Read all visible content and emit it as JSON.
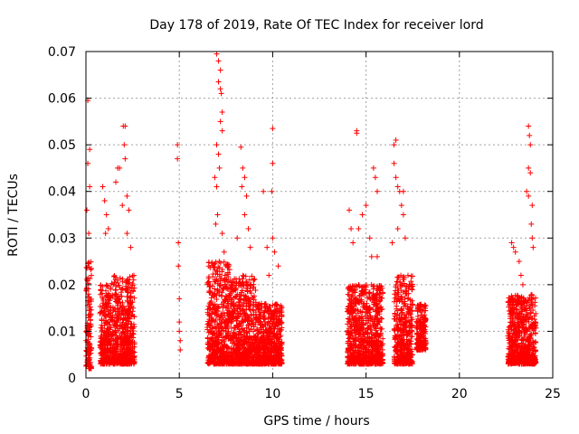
{
  "chart_data": {
    "type": "scatter",
    "title": "Day 178 of 2019, Rate Of TEC Index for receiver lord",
    "xlabel": "GPS time / hours",
    "ylabel": "ROTI / TECUs",
    "xlim": [
      0,
      25
    ],
    "ylim": [
      0,
      0.07
    ],
    "x_ticks": [
      "0",
      "5",
      "10",
      "15",
      "20",
      "25"
    ],
    "y_ticks": [
      "0",
      "0.01",
      "0.02",
      "0.03",
      "0.04",
      "0.05",
      "0.06",
      "0.07"
    ],
    "grid": true,
    "marker": "plus",
    "color": "#ff0000",
    "clusters": [
      {
        "x_range": [
          0.0,
          0.3
        ],
        "y_range": [
          0.002,
          0.025
        ],
        "dense": true
      },
      {
        "x_range": [
          0.75,
          1.3
        ],
        "y_range": [
          0.003,
          0.02
        ],
        "dense": true
      },
      {
        "x_range": [
          1.3,
          2.6
        ],
        "y_range": [
          0.003,
          0.022
        ],
        "dense": true
      },
      {
        "x_range": [
          6.5,
          7.7
        ],
        "y_range": [
          0.003,
          0.025
        ],
        "dense": true
      },
      {
        "x_range": [
          7.7,
          9.1
        ],
        "y_range": [
          0.003,
          0.022
        ],
        "dense": true
      },
      {
        "x_range": [
          9.1,
          10.5
        ],
        "y_range": [
          0.003,
          0.016
        ],
        "dense": true
      },
      {
        "x_range": [
          14.0,
          15.9
        ],
        "y_range": [
          0.003,
          0.02
        ],
        "dense": true
      },
      {
        "x_range": [
          16.5,
          17.5
        ],
        "y_range": [
          0.003,
          0.022
        ],
        "dense": true
      },
      {
        "x_range": [
          17.7,
          18.2
        ],
        "y_range": [
          0.006,
          0.016
        ],
        "dense": true
      },
      {
        "x_range": [
          22.6,
          24.1
        ],
        "y_range": [
          0.003,
          0.018
        ],
        "dense": true
      }
    ],
    "outliers": [
      {
        "x": 0.1,
        "y": 0.0595
      },
      {
        "x": 0.1,
        "y": 0.046
      },
      {
        "x": 0.2,
        "y": 0.049
      },
      {
        "x": 0.2,
        "y": 0.041
      },
      {
        "x": 0.05,
        "y": 0.036
      },
      {
        "x": 0.15,
        "y": 0.031
      },
      {
        "x": 0.9,
        "y": 0.041
      },
      {
        "x": 1.0,
        "y": 0.038
      },
      {
        "x": 1.1,
        "y": 0.035
      },
      {
        "x": 1.05,
        "y": 0.031
      },
      {
        "x": 1.2,
        "y": 0.032
      },
      {
        "x": 1.6,
        "y": 0.042
      },
      {
        "x": 1.7,
        "y": 0.045
      },
      {
        "x": 1.8,
        "y": 0.045
      },
      {
        "x": 2.0,
        "y": 0.054
      },
      {
        "x": 2.1,
        "y": 0.054
      },
      {
        "x": 2.05,
        "y": 0.05
      },
      {
        "x": 2.1,
        "y": 0.047
      },
      {
        "x": 2.2,
        "y": 0.039
      },
      {
        "x": 2.3,
        "y": 0.036
      },
      {
        "x": 2.2,
        "y": 0.031
      },
      {
        "x": 1.95,
        "y": 0.037
      },
      {
        "x": 2.4,
        "y": 0.028
      },
      {
        "x": 4.9,
        "y": 0.05
      },
      {
        "x": 4.9,
        "y": 0.047
      },
      {
        "x": 4.95,
        "y": 0.029
      },
      {
        "x": 4.95,
        "y": 0.024
      },
      {
        "x": 5.0,
        "y": 0.017
      },
      {
        "x": 5.0,
        "y": 0.012
      },
      {
        "x": 5.0,
        "y": 0.01
      },
      {
        "x": 5.05,
        "y": 0.008
      },
      {
        "x": 5.05,
        "y": 0.006
      },
      {
        "x": 7.0,
        "y": 0.0695
      },
      {
        "x": 7.1,
        "y": 0.068
      },
      {
        "x": 7.2,
        "y": 0.066
      },
      {
        "x": 7.1,
        "y": 0.0635
      },
      {
        "x": 7.2,
        "y": 0.062
      },
      {
        "x": 7.25,
        "y": 0.061
      },
      {
        "x": 7.3,
        "y": 0.057
      },
      {
        "x": 7.2,
        "y": 0.055
      },
      {
        "x": 7.3,
        "y": 0.053
      },
      {
        "x": 7.0,
        "y": 0.05
      },
      {
        "x": 7.1,
        "y": 0.048
      },
      {
        "x": 7.15,
        "y": 0.045
      },
      {
        "x": 6.9,
        "y": 0.043
      },
      {
        "x": 7.0,
        "y": 0.041
      },
      {
        "x": 7.05,
        "y": 0.035
      },
      {
        "x": 6.95,
        "y": 0.033
      },
      {
        "x": 7.3,
        "y": 0.031
      },
      {
        "x": 7.4,
        "y": 0.027
      },
      {
        "x": 8.3,
        "y": 0.0495
      },
      {
        "x": 8.4,
        "y": 0.045
      },
      {
        "x": 8.5,
        "y": 0.043
      },
      {
        "x": 8.35,
        "y": 0.041
      },
      {
        "x": 8.6,
        "y": 0.039
      },
      {
        "x": 8.5,
        "y": 0.035
      },
      {
        "x": 8.7,
        "y": 0.032
      },
      {
        "x": 8.1,
        "y": 0.03
      },
      {
        "x": 8.8,
        "y": 0.028
      },
      {
        "x": 9.5,
        "y": 0.04
      },
      {
        "x": 9.7,
        "y": 0.028
      },
      {
        "x": 9.8,
        "y": 0.022
      },
      {
        "x": 10.0,
        "y": 0.0535
      },
      {
        "x": 10.0,
        "y": 0.046
      },
      {
        "x": 9.95,
        "y": 0.04
      },
      {
        "x": 10.0,
        "y": 0.03
      },
      {
        "x": 10.1,
        "y": 0.027
      },
      {
        "x": 10.3,
        "y": 0.024
      },
      {
        "x": 14.5,
        "y": 0.053
      },
      {
        "x": 14.5,
        "y": 0.0525
      },
      {
        "x": 14.1,
        "y": 0.036
      },
      {
        "x": 14.2,
        "y": 0.032
      },
      {
        "x": 14.3,
        "y": 0.029
      },
      {
        "x": 14.6,
        "y": 0.032
      },
      {
        "x": 14.8,
        "y": 0.035
      },
      {
        "x": 15.0,
        "y": 0.037
      },
      {
        "x": 15.2,
        "y": 0.03
      },
      {
        "x": 15.4,
        "y": 0.045
      },
      {
        "x": 15.5,
        "y": 0.043
      },
      {
        "x": 15.6,
        "y": 0.04
      },
      {
        "x": 15.3,
        "y": 0.026
      },
      {
        "x": 15.6,
        "y": 0.026
      },
      {
        "x": 16.5,
        "y": 0.05
      },
      {
        "x": 16.6,
        "y": 0.051
      },
      {
        "x": 16.5,
        "y": 0.046
      },
      {
        "x": 16.6,
        "y": 0.043
      },
      {
        "x": 16.7,
        "y": 0.041
      },
      {
        "x": 16.8,
        "y": 0.04
      },
      {
        "x": 17.0,
        "y": 0.04
      },
      {
        "x": 16.9,
        "y": 0.037
      },
      {
        "x": 17.0,
        "y": 0.035
      },
      {
        "x": 16.7,
        "y": 0.032
      },
      {
        "x": 17.1,
        "y": 0.03
      },
      {
        "x": 16.4,
        "y": 0.029
      },
      {
        "x": 23.7,
        "y": 0.054
      },
      {
        "x": 23.75,
        "y": 0.052
      },
      {
        "x": 23.8,
        "y": 0.05
      },
      {
        "x": 23.7,
        "y": 0.045
      },
      {
        "x": 23.8,
        "y": 0.044
      },
      {
        "x": 23.6,
        "y": 0.04
      },
      {
        "x": 23.7,
        "y": 0.039
      },
      {
        "x": 23.9,
        "y": 0.037
      },
      {
        "x": 23.85,
        "y": 0.033
      },
      {
        "x": 23.9,
        "y": 0.03
      },
      {
        "x": 23.95,
        "y": 0.028
      },
      {
        "x": 22.8,
        "y": 0.029
      },
      {
        "x": 22.9,
        "y": 0.028
      },
      {
        "x": 23.0,
        "y": 0.027
      },
      {
        "x": 23.3,
        "y": 0.022
      },
      {
        "x": 23.4,
        "y": 0.02
      },
      {
        "x": 23.2,
        "y": 0.025
      }
    ]
  }
}
